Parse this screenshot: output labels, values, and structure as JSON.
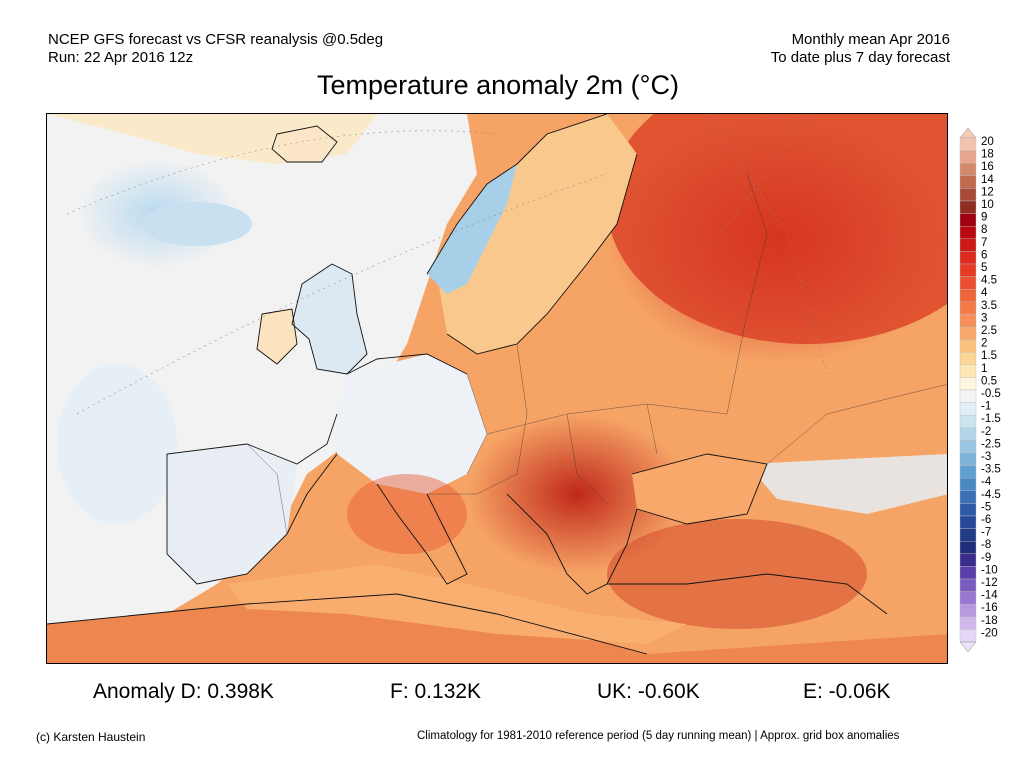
{
  "header": {
    "line1_left": "NCEP GFS forecast vs CFSR reanalysis @0.5deg",
    "line2_left": "Run: 22 Apr 2016 12z",
    "line1_right": "Monthly mean Apr 2016",
    "line2_right": "To date plus 7 day forecast"
  },
  "title": "Temperature anomaly 2m (°C)",
  "legend": {
    "levels": [
      "20",
      "18",
      "16",
      "14",
      "12",
      "10",
      "9",
      "8",
      "7",
      "6",
      "5",
      "4.5",
      "4",
      "3.5",
      "3",
      "2.5",
      "2",
      "1.5",
      "1",
      "0.5",
      "-0.5",
      "-1",
      "-1.5",
      "-2",
      "-2.5",
      "-3",
      "-3.5",
      "-4",
      "-4.5",
      "-5",
      "-6",
      "-7",
      "-8",
      "-9",
      "-10",
      "-12",
      "-14",
      "-16",
      "-18",
      "-20"
    ],
    "colors": [
      "#f2c4b0",
      "#e8a68c",
      "#d4886a",
      "#c06a4e",
      "#a84c38",
      "#902e22",
      "#a00010",
      "#b80a10",
      "#cc1a14",
      "#dc2a1c",
      "#e63c24",
      "#ec5030",
      "#f0643a",
      "#f47a48",
      "#f69058",
      "#f8a86a",
      "#fac07e",
      "#fcd694",
      "#fde8b4",
      "#fff6e0",
      "#f4f4f4",
      "#e2eef6",
      "#cce4f0",
      "#b4d6ea",
      "#98c6e2",
      "#7cb4da",
      "#60a0d0",
      "#4a88c4",
      "#3a70b6",
      "#2e5aa8",
      "#264a98",
      "#223c88",
      "#1e2e7a",
      "#3a2c8c",
      "#5a40a8",
      "#7a5cc0",
      "#9878d2",
      "#b698e0",
      "#d0b8ec",
      "#e6d6f6"
    ],
    "top_color": "#f7c9b6",
    "bottom_color": "#ece0fa"
  },
  "stats": {
    "anomaly_d": "Anomaly D: 0.398K",
    "f": "F: 0.132K",
    "uk": "UK: -0.60K",
    "e": "E: -0.06K"
  },
  "footer": {
    "credit": "(c) Karsten Haustein",
    "note": "Climatology for 1981-2010 reference period (5 day running mean) | Approx. grid box anomalies"
  }
}
